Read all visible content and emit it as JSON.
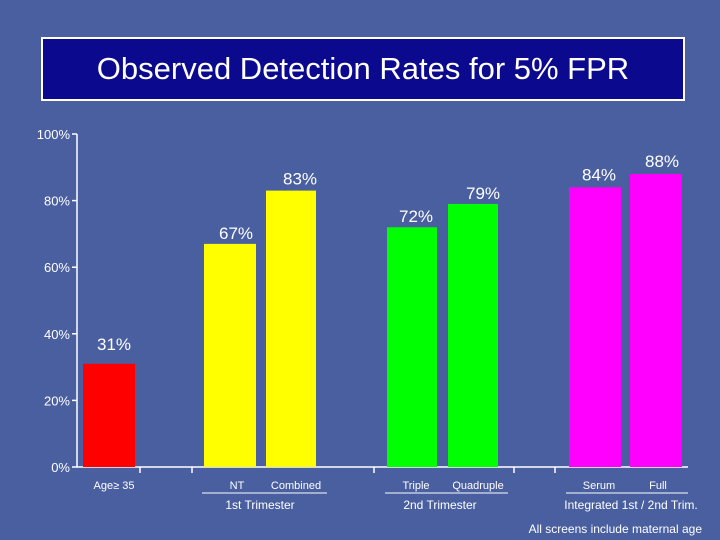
{
  "chart_data": {
    "type": "bar",
    "title": "Observed Detection Rates for 5% FPR",
    "ylim": [
      0,
      100
    ],
    "yticks": [
      "0%",
      "20%",
      "40%",
      "60%",
      "80%",
      "100%"
    ],
    "grid": false,
    "bars": [
      {
        "category": "Age≥ 35",
        "value": 31,
        "label": "31%",
        "color": "#ff0000"
      },
      {
        "category": "NT",
        "value": 67,
        "label": "67%",
        "color": "#ffff00"
      },
      {
        "category": "Combined",
        "value": 83,
        "label": "83%",
        "color": "#ffff00"
      },
      {
        "category": "Triple",
        "value": 72,
        "label": "72%",
        "color": "#00ff00"
      },
      {
        "category": "Quadruple",
        "value": 79,
        "label": "79%",
        "color": "#00ff00"
      },
      {
        "category": "Serum",
        "value": 84,
        "label": "84%",
        "color": "#ff00ff"
      },
      {
        "category": "Full",
        "value": 88,
        "label": "88%",
        "color": "#ff00ff"
      }
    ],
    "groups": [
      {
        "label": "1st Trimester"
      },
      {
        "label": "2nd Trimester"
      },
      {
        "label": "Integrated 1st / 2nd Trim."
      }
    ],
    "footnote": "All screens include maternal age"
  }
}
